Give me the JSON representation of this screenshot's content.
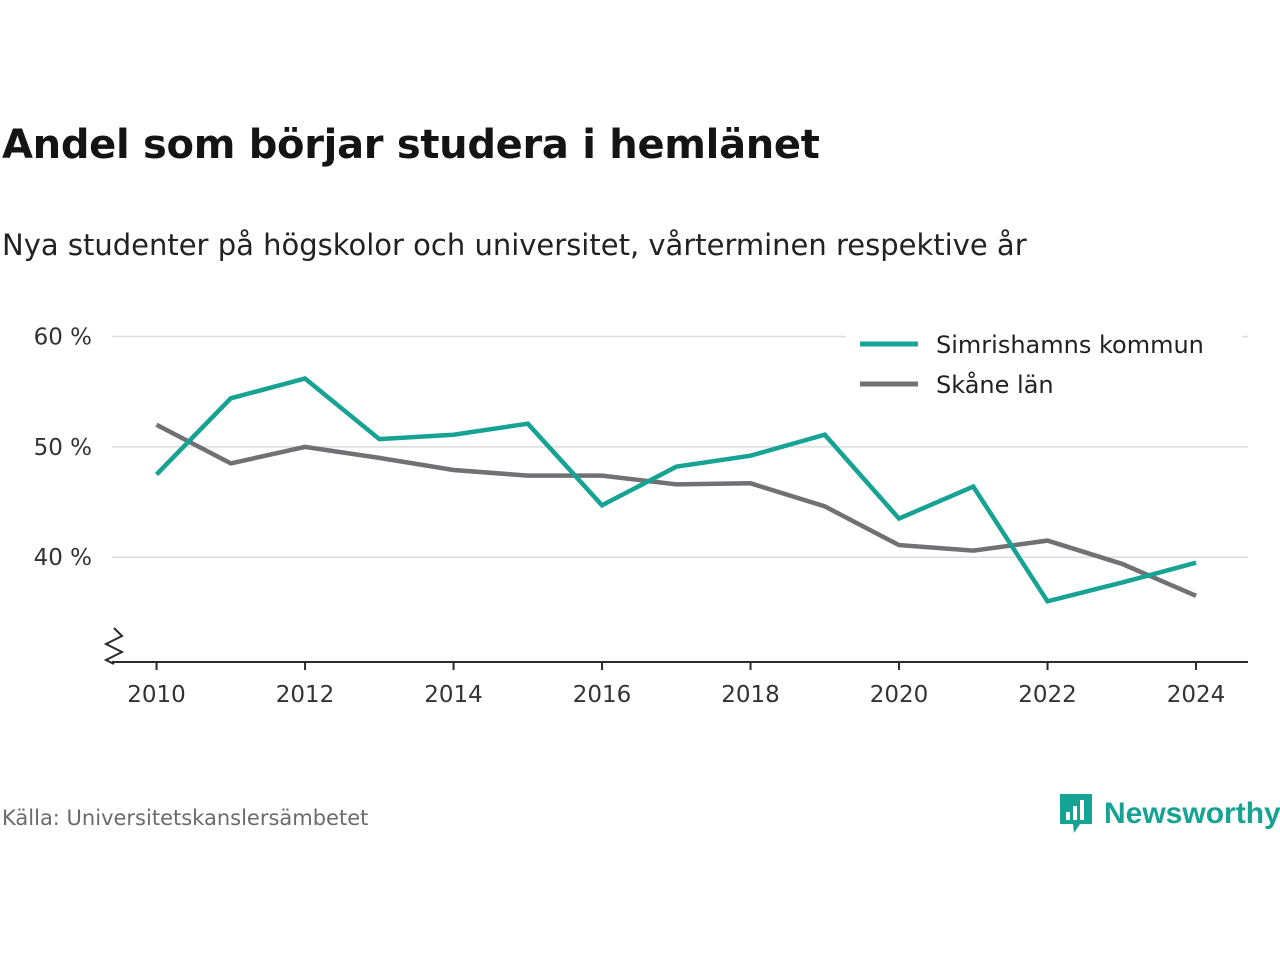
{
  "header": {
    "title": "Andel som börjar studera i hemlänet",
    "subtitle": "Nya studenter på högskolor och universitet, vårterminen respektive år"
  },
  "footer": {
    "source": "Källa: Universitetskanslersämbetet",
    "brand": "Newsworthy",
    "brand_icon": "chart-bubble-icon",
    "brand_color": "#16a394"
  },
  "chart_data": {
    "type": "line",
    "x": [
      2010,
      2011,
      2012,
      2013,
      2014,
      2015,
      2016,
      2017,
      2018,
      2019,
      2020,
      2021,
      2022,
      2023,
      2024
    ],
    "series": [
      {
        "name": "Simrishamns kommun",
        "color": "#16a394",
        "values": [
          47.5,
          54.4,
          56.2,
          50.7,
          51.1,
          52.1,
          44.7,
          48.2,
          49.2,
          51.1,
          43.5,
          46.4,
          36.0,
          37.7,
          39.5
        ]
      },
      {
        "name": "Skåne län",
        "color": "#707075",
        "values": [
          52.0,
          48.5,
          50.0,
          49.0,
          47.9,
          47.4,
          47.4,
          46.6,
          46.7,
          44.6,
          41.1,
          40.6,
          41.5,
          39.4,
          36.5
        ]
      }
    ],
    "xticks": [
      2010,
      2012,
      2014,
      2016,
      2018,
      2020,
      2022,
      2024
    ],
    "xtick_labels": [
      "2010",
      "2012",
      "2014",
      "2016",
      "2018",
      "2020",
      "2022",
      "2024"
    ],
    "yticks": [
      40,
      50,
      60
    ],
    "ytick_labels": [
      "40 %",
      "50 %",
      "60 %"
    ],
    "xlim": [
      2009.4,
      2024.7
    ],
    "ylim": [
      30.5,
      61.5
    ],
    "axis_break": true,
    "grid": true,
    "legend_position": "top-right"
  }
}
